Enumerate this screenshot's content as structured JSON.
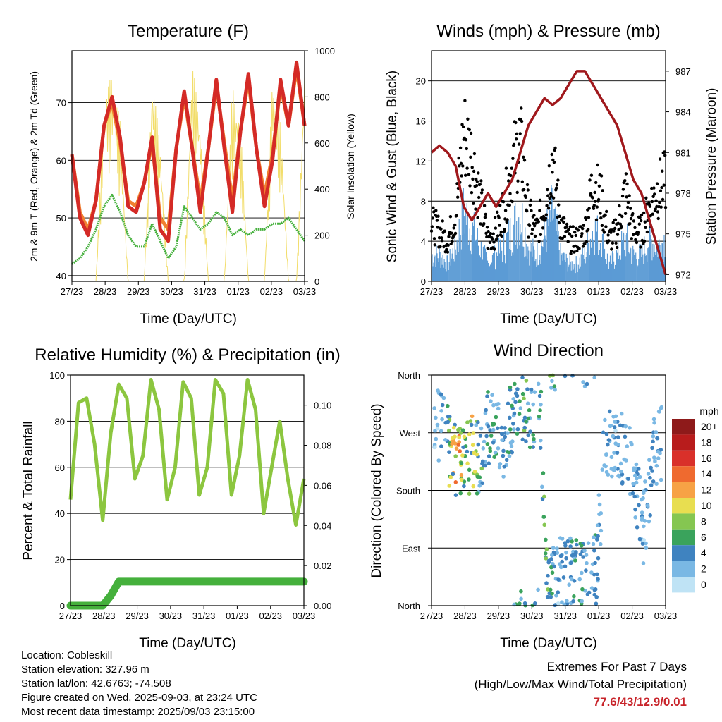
{
  "x_ticks": [
    "27/23",
    "28/23",
    "29/23",
    "30/23",
    "31/23",
    "01/23",
    "02/23",
    "03/23"
  ],
  "charts": {
    "temperature": {
      "title": "Temperature (F)",
      "xlabel": "Time (Day/UTC)",
      "ylabel_left": "2m & 9m T (Red, Orange) & 2m Td (Green)",
      "ylabel_right": "Solar Insolation (Yellow)"
    },
    "winds": {
      "title": "Winds (mph) & Pressure (mb)",
      "xlabel": "Time (Day/UTC)",
      "ylabel_left": "Sonic Wind & Gust (Blue, Black)",
      "ylabel_right": "Station Pressure (Maroon)"
    },
    "humidity": {
      "title": "Relative Humidity (%) & Precipitation (in)",
      "xlabel": "Time (Day/UTC)",
      "ylabel_left": "Percent & Total Rainfall"
    },
    "direction": {
      "title": "Wind Direction",
      "xlabel": "Time (Day/UTC)",
      "ylabel_left": "Direction (Colored By Speed)",
      "legend_unit": "mph"
    }
  },
  "chart_data": [
    {
      "type": "line",
      "title": "Temperature (F)",
      "xlabel": "Time (Day/UTC)",
      "ylabel": "2m & 9m T (Red, Orange) & 2m Td (Green)",
      "y2label": "Solar Insolation (Yellow)",
      "x": [
        "27/23",
        "28/00",
        "28/06",
        "28/12",
        "28/18",
        "29/00",
        "29/06",
        "29/12",
        "29/18",
        "30/00",
        "30/06",
        "30/12",
        "30/18",
        "31/00",
        "31/06",
        "31/12",
        "31/18",
        "01/00",
        "01/06",
        "01/12",
        "01/18",
        "02/00",
        "02/06",
        "02/12",
        "02/18",
        "03/00",
        "03/06",
        "03/12",
        "03/18",
        "03/23"
      ],
      "ylim": [
        39,
        79
      ],
      "y2lim": [
        0,
        1000
      ],
      "yticks": [
        40,
        50,
        60,
        70
      ],
      "y2ticks": [
        0,
        200,
        400,
        600,
        800,
        1000
      ],
      "series": [
        {
          "name": "2m T",
          "color": "#d42a26",
          "values": [
            61,
            50,
            47,
            53,
            66,
            71,
            64,
            52,
            51,
            56,
            64,
            48,
            46,
            62,
            72,
            62,
            51,
            62,
            74,
            62,
            51,
            65,
            75,
            62,
            52,
            60,
            74,
            66,
            77,
            66
          ]
        },
        {
          "name": "9m T",
          "color": "#f08030",
          "values": [
            61,
            51,
            48,
            53,
            66,
            70,
            63,
            53,
            52,
            56,
            63,
            50,
            48,
            62,
            71,
            62,
            53,
            62,
            73,
            63,
            53,
            65,
            74,
            62,
            54,
            61,
            73,
            66,
            76,
            66
          ]
        },
        {
          "name": "2m Td",
          "color": "#45b03c",
          "values": [
            42,
            43,
            45,
            48,
            52,
            54,
            51,
            47,
            45,
            45,
            49,
            46,
            43,
            45,
            52,
            50,
            48,
            49,
            51,
            50,
            47,
            48,
            47,
            48,
            48,
            49,
            49,
            50,
            48,
            46
          ]
        },
        {
          "name": "Solar Insolation",
          "color": "#f2dd6a",
          "axis": "right",
          "values": [
            0,
            0,
            0,
            0,
            800,
            900,
            700,
            0,
            0,
            0,
            900,
            600,
            0,
            0,
            0,
            950,
            700,
            0,
            0,
            0,
            850,
            700,
            0,
            0,
            0,
            900,
            700,
            0,
            0,
            950
          ]
        }
      ]
    },
    {
      "type": "line",
      "title": "Winds (mph) & Pressure (mb)",
      "xlabel": "Time (Day/UTC)",
      "ylabel": "Sonic Wind & Gust (Blue, Black)",
      "y2label": "Station Pressure (Maroon)",
      "x": [
        "27/23",
        "28/00",
        "28/06",
        "28/12",
        "28/18",
        "29/00",
        "29/06",
        "29/12",
        "29/18",
        "30/00",
        "30/06",
        "30/12",
        "30/18",
        "31/00",
        "31/06",
        "31/12",
        "31/18",
        "01/00",
        "01/06",
        "01/12",
        "01/18",
        "02/00",
        "02/06",
        "02/12",
        "02/18",
        "03/00",
        "03/06",
        "03/12",
        "03/18",
        "03/23"
      ],
      "ylim": [
        0,
        23
      ],
      "y2lim": [
        971.5,
        988.5
      ],
      "yticks": [
        0,
        4,
        8,
        12,
        16,
        20
      ],
      "y2ticks": [
        972,
        975,
        978,
        981,
        984,
        987
      ],
      "series": [
        {
          "name": "Wind",
          "color": "#5b9bd5",
          "values": [
            3,
            3,
            2,
            4,
            8,
            6,
            4,
            2,
            3,
            4,
            6,
            8,
            4,
            3,
            5,
            8,
            3,
            2,
            2,
            3,
            6,
            5,
            2,
            3,
            5,
            3,
            3,
            5,
            4,
            5
          ]
        },
        {
          "name": "Gust",
          "color": "#000000",
          "values": [
            7,
            6,
            5,
            8,
            18,
            15,
            10,
            5,
            6,
            9,
            14,
            17,
            8,
            6,
            9,
            15,
            7,
            5,
            5,
            6,
            12,
            10,
            5,
            6,
            11,
            6,
            6,
            9,
            11,
            12
          ]
        },
        {
          "name": "Pressure",
          "color": "#a0181c",
          "axis": "right",
          "values": [
            981,
            981.5,
            981,
            980,
            977,
            976,
            977,
            978,
            977,
            978,
            979,
            981,
            983,
            984,
            985,
            984.5,
            985,
            986,
            987,
            987,
            986,
            985,
            984,
            983,
            981,
            979,
            978,
            976,
            974,
            972
          ]
        }
      ]
    },
    {
      "type": "line",
      "title": "Relative Humidity (%) & Precipitation (in)",
      "xlabel": "Time (Day/UTC)",
      "ylabel": "Percent & Total Rainfall",
      "x": [
        "27/23",
        "28/00",
        "28/06",
        "28/12",
        "28/18",
        "29/00",
        "29/06",
        "29/12",
        "29/18",
        "30/00",
        "30/06",
        "30/12",
        "30/18",
        "31/00",
        "31/06",
        "31/12",
        "31/18",
        "01/00",
        "01/06",
        "01/12",
        "01/18",
        "02/00",
        "02/06",
        "02/12",
        "02/18",
        "03/00",
        "03/06",
        "03/12",
        "03/18",
        "03/23"
      ],
      "ylim": [
        0,
        100
      ],
      "y2lim": [
        0,
        0.115
      ],
      "yticks": [
        0,
        20,
        40,
        60,
        80,
        100
      ],
      "y2ticks": [
        "0.00",
        "0.02",
        "0.04",
        "0.06",
        "0.08",
        "0.10"
      ],
      "series": [
        {
          "name": "Relative Humidity",
          "color": "#8cc63f",
          "values": [
            46,
            88,
            90,
            70,
            37,
            75,
            96,
            90,
            55,
            65,
            98,
            85,
            46,
            60,
            97,
            90,
            48,
            60,
            98,
            92,
            48,
            65,
            98,
            85,
            40,
            60,
            80,
            55,
            35,
            55
          ]
        },
        {
          "name": "Total Precipitation",
          "color": "#45b03c",
          "axis": "right",
          "values": [
            0,
            0,
            0,
            0,
            0,
            0.005,
            0.012,
            0.012,
            0.012,
            0.012,
            0.012,
            0.012,
            0.012,
            0.012,
            0.012,
            0.012,
            0.012,
            0.012,
            0.012,
            0.012,
            0.012,
            0.012,
            0.012,
            0.012,
            0.012,
            0.012,
            0.012,
            0.012,
            0.012,
            0.012
          ]
        }
      ]
    },
    {
      "type": "scatter",
      "title": "Wind Direction",
      "xlabel": "Time (Day/UTC)",
      "ylabel": "Direction (Colored By Speed)",
      "ylim": [
        0,
        360
      ],
      "yticks": [
        "North",
        "East",
        "South",
        "West",
        "North"
      ],
      "colorbar": {
        "unit": "mph",
        "labels": [
          "20+",
          "18",
          "16",
          "14",
          "12",
          "10",
          "8",
          "6",
          "4",
          "2",
          "0"
        ],
        "colors": [
          "#8e1a1a",
          "#b81c1c",
          "#d9302a",
          "#ef6a2f",
          "#f7a245",
          "#e8de50",
          "#85c651",
          "#3aa35c",
          "#3f83c0",
          "#7ab8e4",
          "#bfe3f5"
        ]
      },
      "x": [
        "27/23",
        "28/00",
        "28/03",
        "28/06",
        "28/12",
        "29/00",
        "29/06",
        "29/12",
        "30/00",
        "30/06",
        "30/12",
        "31/00",
        "31/06",
        "31/12",
        "01/00",
        "01/06",
        "01/12",
        "02/00",
        "02/06",
        "02/12",
        "03/00",
        "03/06",
        "03/12",
        "03/18",
        "03/23"
      ],
      "y": [
        290,
        275,
        225,
        220,
        240,
        230,
        300,
        250,
        290,
        330,
        280,
        350,
        20,
        45,
        60,
        50,
        40,
        55,
        270,
        240,
        250,
        200,
        120,
        230,
        260
      ],
      "speed": [
        2,
        3,
        12,
        11,
        10,
        6,
        6,
        4,
        5,
        7,
        6,
        5,
        9,
        3,
        4,
        6,
        4,
        5,
        3,
        3,
        4,
        4,
        3,
        4,
        3
      ]
    }
  ],
  "info": {
    "location": "Location: Cobleskill",
    "elevation": "Station elevation: 327.96 m",
    "latlon": "Station lat/lon: 42.6763; -74.508",
    "created": "Figure created on Wed, 2025-09-03, at 23:24 UTC",
    "recent": "Most recent data timestamp: 2025/09/03 23:15:00"
  },
  "extremes": {
    "title": "Extremes For Past 7 Days",
    "subtitle": "(High/Low/Max Wind/Total Precipitation)",
    "values": "77.6/43/12.9/0.01"
  }
}
